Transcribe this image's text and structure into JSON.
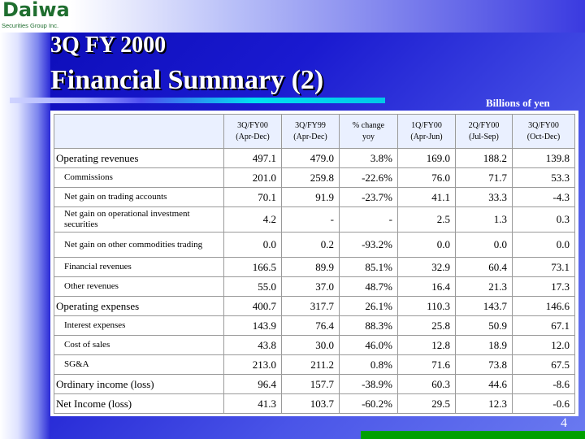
{
  "logo": {
    "word": "Daiwa",
    "sub": "Securities Group Inc."
  },
  "title": {
    "line1": "3Q FY 2000",
    "line2": "Financial Summary (2)"
  },
  "units": "Billions of yen",
  "table": {
    "headers": [
      [
        "3Q/FY00",
        "(Apr-Dec)"
      ],
      [
        "3Q/FY99",
        "(Apr-Dec)"
      ],
      [
        "% change",
        "yoy"
      ],
      [
        "1Q/FY00",
        "(Apr-Jun)"
      ],
      [
        "2Q/FY00",
        "(Jul-Sep)"
      ],
      [
        "3Q/FY00",
        "(Oct-Dec)"
      ]
    ],
    "rows": [
      {
        "label": "Operating revenues",
        "values": [
          "497.1",
          "479.0",
          "3.8%",
          "169.0",
          "188.2",
          "139.8"
        ]
      },
      {
        "label": "Commissions",
        "values": [
          "201.0",
          "259.8",
          "-22.6%",
          "76.0",
          "71.7",
          "53.3"
        ]
      },
      {
        "label": "Net gain on trading accounts",
        "values": [
          "70.1",
          "91.9",
          "-23.7%",
          "41.1",
          "33.3",
          "-4.3"
        ]
      },
      {
        "label": "Net gain on operational investment securities",
        "values": [
          "4.2",
          "-",
          "-",
          "2.5",
          "1.3",
          "0.3"
        ]
      },
      {
        "label": "Net gain on other commodities trading",
        "values": [
          "0.0",
          "0.2",
          "-93.2%",
          "0.0",
          "0.0",
          "0.0"
        ]
      },
      {
        "label": "Financial revenues",
        "values": [
          "166.5",
          "89.9",
          "85.1%",
          "32.9",
          "60.4",
          "73.1"
        ]
      },
      {
        "label": "Other revenues",
        "values": [
          "55.0",
          "37.0",
          "48.7%",
          "16.4",
          "21.3",
          "17.3"
        ]
      },
      {
        "label": "Operating expenses",
        "values": [
          "400.7",
          "317.7",
          "26.1%",
          "110.3",
          "143.7",
          "146.6"
        ]
      },
      {
        "label": "Interest expenses",
        "values": [
          "143.9",
          "76.4",
          "88.3%",
          "25.8",
          "50.9",
          "67.1"
        ]
      },
      {
        "label": "Cost of sales",
        "values": [
          "43.8",
          "30.0",
          "46.0%",
          "12.8",
          "18.9",
          "12.0"
        ]
      },
      {
        "label": "SG&A",
        "values": [
          "213.0",
          "211.2",
          "0.8%",
          "71.6",
          "73.8",
          "67.5"
        ]
      },
      {
        "label": "Ordinary income (loss)",
        "values": [
          "96.4",
          "157.7",
          "-38.9%",
          "60.3",
          "44.6",
          "-8.6"
        ]
      },
      {
        "label": "Net Income (loss)",
        "values": [
          "41.3",
          "103.7",
          "-60.2%",
          "29.5",
          "12.3",
          "-0.6"
        ]
      }
    ]
  },
  "page_number": "4",
  "colors": {
    "background": "#1a1ad0",
    "logo_green": "#1f6e2f",
    "header_fill": "#eaf0ff",
    "bottom_bar": "#00a000"
  }
}
